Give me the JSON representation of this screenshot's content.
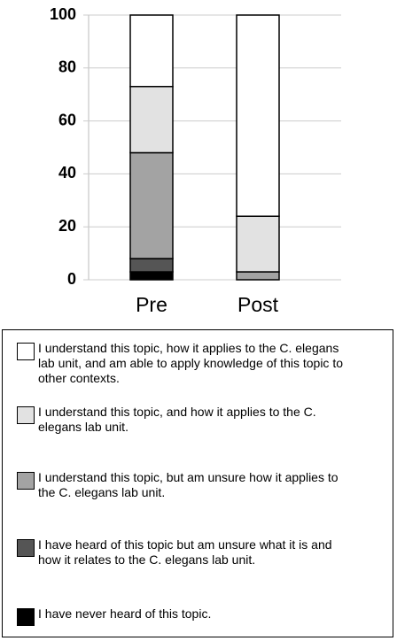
{
  "chart_data": {
    "type": "stacked-bar",
    "categories": [
      "Pre",
      "Post"
    ],
    "series": [
      {
        "name": "I have never heard of this topic.",
        "color": "#000000",
        "values": [
          3,
          0
        ]
      },
      {
        "name": "I have heard of this topic but am unsure what it is and how it relates to the C. elegans lab unit.",
        "color": "#555555",
        "values": [
          5,
          0
        ]
      },
      {
        "name": "I understand this topic, but am unsure how it applies to the C. elegans lab unit.",
        "color": "#a3a3a3",
        "values": [
          40,
          3
        ]
      },
      {
        "name": "I understand this topic, and how it applies to the C. elegans lab unit.",
        "color": "#e2e2e2",
        "values": [
          25,
          21
        ]
      },
      {
        "name": "I understand this topic, how it applies to the C. elegans lab unit, and am able to apply knowledge of this topic to other contexts.",
        "color": "#ffffff",
        "values": [
          27,
          76
        ]
      }
    ],
    "ylim": [
      0,
      100
    ],
    "yticks": [
      0,
      20,
      40,
      60,
      80,
      100
    ],
    "grid": true
  }
}
